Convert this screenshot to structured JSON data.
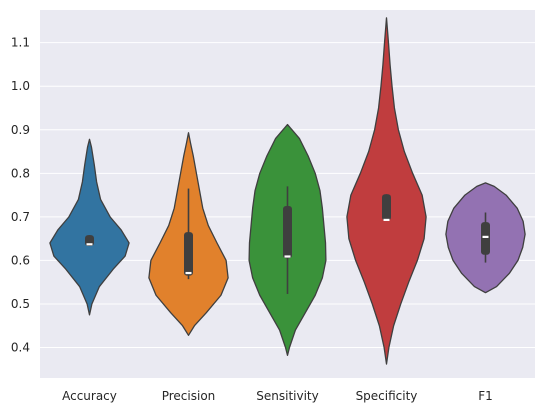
{
  "chart_data": {
    "type": "violin",
    "categories": [
      "Accuracy",
      "Precision",
      "Sensitivity",
      "Specificity",
      "F1"
    ],
    "ylim": [
      0.33,
      1.175
    ],
    "yticks": [
      0.4,
      0.5,
      0.6,
      0.7,
      0.8,
      0.9,
      1.0,
      1.1
    ],
    "ytick_labels": [
      "0.4",
      "0.5",
      "0.6",
      "0.7",
      "0.8",
      "0.9",
      "1.0",
      "1.1"
    ],
    "grid": true,
    "colors": [
      "#3274a1",
      "#e1812c",
      "#3a923a",
      "#c03d3e",
      "#9372b2"
    ],
    "series": [
      {
        "category": "Accuracy",
        "min": 0.475,
        "max": 0.878,
        "q1": 0.633,
        "median": 0.637,
        "q3": 0.658,
        "whisker_low": 0.633,
        "whisker_high": 0.658,
        "density": [
          [
            0.475,
            0.0
          ],
          [
            0.5,
            0.06
          ],
          [
            0.54,
            0.25
          ],
          [
            0.58,
            0.6
          ],
          [
            0.61,
            0.9
          ],
          [
            0.64,
            1.0
          ],
          [
            0.67,
            0.8
          ],
          [
            0.7,
            0.52
          ],
          [
            0.74,
            0.28
          ],
          [
            0.78,
            0.18
          ],
          [
            0.82,
            0.12
          ],
          [
            0.86,
            0.05
          ],
          [
            0.878,
            0.0
          ]
        ]
      },
      {
        "category": "Precision",
        "min": 0.428,
        "max": 0.893,
        "q1": 0.565,
        "median": 0.571,
        "q3": 0.665,
        "whisker_low": 0.557,
        "whisker_high": 0.765,
        "density": [
          [
            0.428,
            0.0
          ],
          [
            0.45,
            0.15
          ],
          [
            0.48,
            0.45
          ],
          [
            0.52,
            0.82
          ],
          [
            0.56,
            1.0
          ],
          [
            0.6,
            0.95
          ],
          [
            0.64,
            0.72
          ],
          [
            0.68,
            0.5
          ],
          [
            0.72,
            0.36
          ],
          [
            0.76,
            0.28
          ],
          [
            0.8,
            0.2
          ],
          [
            0.84,
            0.12
          ],
          [
            0.87,
            0.05
          ],
          [
            0.893,
            0.0
          ]
        ]
      },
      {
        "category": "Sensitivity",
        "min": 0.382,
        "max": 0.912,
        "q1": 0.605,
        "median": 0.609,
        "q3": 0.725,
        "whisker_low": 0.523,
        "whisker_high": 0.77,
        "density": [
          [
            0.382,
            0.0
          ],
          [
            0.4,
            0.05
          ],
          [
            0.44,
            0.2
          ],
          [
            0.48,
            0.45
          ],
          [
            0.52,
            0.7
          ],
          [
            0.56,
            0.88
          ],
          [
            0.6,
            0.97
          ],
          [
            0.64,
            0.96
          ],
          [
            0.68,
            0.92
          ],
          [
            0.72,
            0.88
          ],
          [
            0.76,
            0.82
          ],
          [
            0.8,
            0.7
          ],
          [
            0.84,
            0.52
          ],
          [
            0.88,
            0.3
          ],
          [
            0.912,
            0.0
          ]
        ]
      },
      {
        "category": "Specificity",
        "min": 0.362,
        "max": 1.157,
        "q1": 0.692,
        "median": 0.693,
        "q3": 0.752,
        "whisker_low": 0.692,
        "whisker_high": 0.752,
        "density": [
          [
            0.362,
            0.0
          ],
          [
            0.4,
            0.06
          ],
          [
            0.45,
            0.18
          ],
          [
            0.5,
            0.36
          ],
          [
            0.55,
            0.56
          ],
          [
            0.6,
            0.78
          ],
          [
            0.65,
            0.95
          ],
          [
            0.7,
            1.0
          ],
          [
            0.75,
            0.9
          ],
          [
            0.8,
            0.66
          ],
          [
            0.85,
            0.45
          ],
          [
            0.9,
            0.3
          ],
          [
            0.95,
            0.2
          ],
          [
            1.0,
            0.14
          ],
          [
            1.05,
            0.09
          ],
          [
            1.1,
            0.05
          ],
          [
            1.157,
            0.0
          ]
        ]
      },
      {
        "category": "F1",
        "min": 0.526,
        "max": 0.778,
        "q1": 0.613,
        "median": 0.654,
        "q3": 0.688,
        "whisker_low": 0.595,
        "whisker_high": 0.71,
        "density": [
          [
            0.526,
            0.0
          ],
          [
            0.54,
            0.28
          ],
          [
            0.57,
            0.6
          ],
          [
            0.6,
            0.82
          ],
          [
            0.63,
            0.94
          ],
          [
            0.66,
            1.0
          ],
          [
            0.69,
            0.95
          ],
          [
            0.72,
            0.8
          ],
          [
            0.75,
            0.52
          ],
          [
            0.77,
            0.22
          ],
          [
            0.778,
            0.0
          ]
        ]
      }
    ]
  }
}
